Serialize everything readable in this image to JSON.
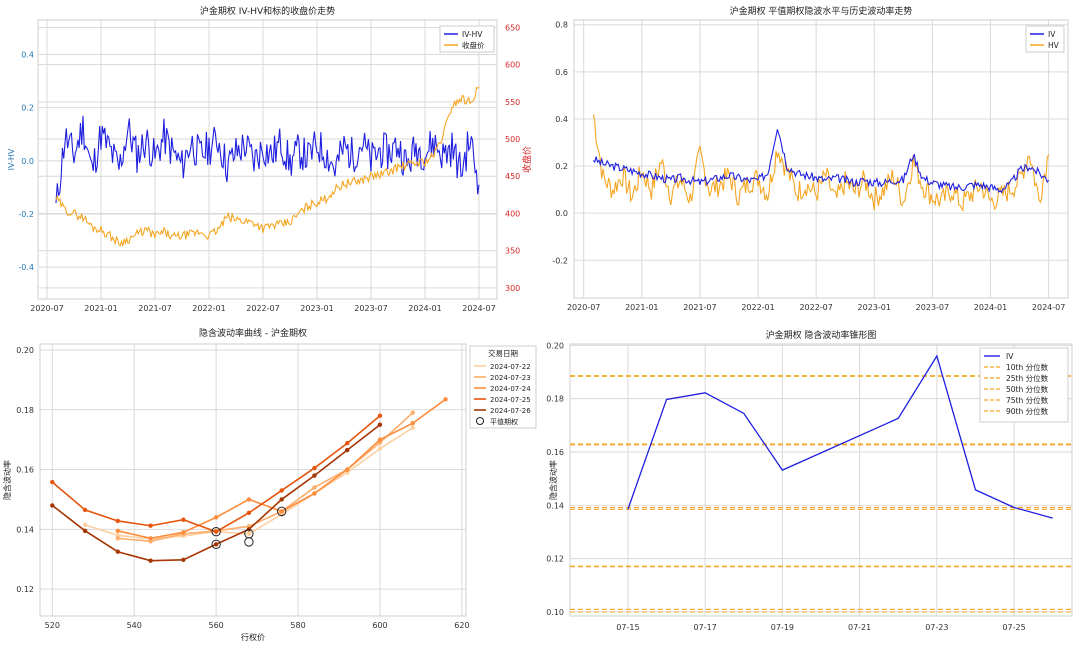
{
  "chart_data": [
    {
      "type": "line",
      "title": "沪金期权 IV-HV和标的收盘价走势",
      "xlabel": "",
      "ylabel": "IV-HV",
      "y2label": "收盘价",
      "x_ticks": [
        "2020-07",
        "2021-01",
        "2021-07",
        "2022-01",
        "2022-07",
        "2023-01",
        "2023-07",
        "2024-01",
        "2024-07"
      ],
      "y_ticks": [
        "-0.4",
        "-0.2",
        "0.0",
        "0.2",
        "0.4"
      ],
      "y2_ticks": [
        "300",
        "350",
        "400",
        "450",
        "500",
        "550",
        "600",
        "650"
      ],
      "xlim": [
        "2020-06",
        "2024-09"
      ],
      "ylim": [
        -0.52,
        0.53
      ],
      "y2lim": [
        285,
        660
      ],
      "grid": true,
      "legend_position": "top-right",
      "series": [
        {
          "name": "IV-HV",
          "axis": "left",
          "color": "#1f1fe0",
          "x": [
            "2020-08",
            "2020-09",
            "2020-10",
            "2020-11",
            "2020-12",
            "2021-01",
            "2021-02",
            "2021-03",
            "2021-04",
            "2021-05",
            "2021-06",
            "2021-07",
            "2021-08",
            "2021-09",
            "2021-10",
            "2021-11",
            "2021-12",
            "2022-01",
            "2022-02",
            "2022-03",
            "2022-04",
            "2022-05",
            "2022-06",
            "2022-07",
            "2022-08",
            "2022-09",
            "2022-10",
            "2022-11",
            "2022-12",
            "2023-01",
            "2023-02",
            "2023-03",
            "2023-04",
            "2023-05",
            "2023-06",
            "2023-07",
            "2023-08",
            "2023-09",
            "2023-10",
            "2023-11",
            "2023-12",
            "2024-01",
            "2024-02",
            "2024-03",
            "2024-04",
            "2024-05",
            "2024-06",
            "2024-07"
          ],
          "values": [
            -0.18,
            0.09,
            0.02,
            0.13,
            -0.04,
            0.1,
            0.04,
            -0.03,
            0.12,
            0.02,
            0.08,
            0.01,
            0.09,
            0.03,
            -0.02,
            0.07,
            0.02,
            0.05,
            0.08,
            -0.02,
            0.03,
            0.06,
            0.0,
            0.05,
            0.02,
            0.07,
            -0.01,
            0.04,
            0.01,
            0.06,
            0.03,
            -0.03,
            0.05,
            0.02,
            0.07,
            0.0,
            0.04,
            0.03,
            0.06,
            -0.02,
            0.05,
            0.03,
            0.07,
            0.02,
            0.05,
            -0.04,
            0.08,
            -0.09
          ]
        },
        {
          "name": "收盘价",
          "axis": "right",
          "color": "#f5a623",
          "x": [
            "2020-08",
            "2020-09",
            "2020-10",
            "2020-11",
            "2020-12",
            "2021-01",
            "2021-02",
            "2021-03",
            "2021-04",
            "2021-05",
            "2021-06",
            "2021-07",
            "2021-08",
            "2021-09",
            "2021-10",
            "2021-11",
            "2021-12",
            "2022-01",
            "2022-02",
            "2022-03",
            "2022-04",
            "2022-05",
            "2022-06",
            "2022-07",
            "2022-08",
            "2022-09",
            "2022-10",
            "2022-11",
            "2022-12",
            "2023-01",
            "2023-02",
            "2023-03",
            "2023-04",
            "2023-05",
            "2023-06",
            "2023-07",
            "2023-08",
            "2023-09",
            "2023-10",
            "2023-11",
            "2023-12",
            "2024-01",
            "2024-02",
            "2024-03",
            "2024-04",
            "2024-05",
            "2024-06",
            "2024-07"
          ],
          "values": [
            420,
            405,
            400,
            395,
            382,
            378,
            370,
            360,
            365,
            372,
            378,
            370,
            375,
            368,
            370,
            372,
            375,
            370,
            378,
            395,
            392,
            390,
            388,
            380,
            384,
            385,
            388,
            400,
            410,
            415,
            420,
            432,
            440,
            442,
            445,
            450,
            452,
            456,
            462,
            465,
            468,
            470,
            478,
            505,
            545,
            555,
            550,
            570
          ]
        }
      ]
    },
    {
      "type": "line",
      "title": "沪金期权 平值期权隐波水平与历史波动率走势",
      "xlabel": "",
      "ylabel": "",
      "x_ticks": [
        "2020-07",
        "2021-01",
        "2021-07",
        "2022-01",
        "2022-07",
        "2023-01",
        "2023-07",
        "2024-01",
        "2024-07"
      ],
      "y_ticks": [
        "-0.2",
        "0.0",
        "0.2",
        "0.4",
        "0.6",
        "0.8"
      ],
      "xlim": [
        "2020-06",
        "2024-09"
      ],
      "ylim": [
        -0.36,
        0.82
      ],
      "grid": true,
      "legend_position": "top-right",
      "series": [
        {
          "name": "IV",
          "color": "#1f1fe0",
          "x": [
            "2020-08",
            "2020-09",
            "2020-10",
            "2020-11",
            "2020-12",
            "2021-01",
            "2021-02",
            "2021-03",
            "2021-04",
            "2021-05",
            "2021-06",
            "2021-07",
            "2021-08",
            "2021-09",
            "2021-10",
            "2021-11",
            "2021-12",
            "2022-01",
            "2022-02",
            "2022-03",
            "2022-04",
            "2022-05",
            "2022-06",
            "2022-07",
            "2022-08",
            "2022-09",
            "2022-10",
            "2022-11",
            "2022-12",
            "2023-01",
            "2023-02",
            "2023-03",
            "2023-04",
            "2023-05",
            "2023-06",
            "2023-07",
            "2023-08",
            "2023-09",
            "2023-10",
            "2023-11",
            "2023-12",
            "2024-01",
            "2024-02",
            "2024-03",
            "2024-04",
            "2024-05",
            "2024-06",
            "2024-07"
          ],
          "values": [
            0.23,
            0.21,
            0.2,
            0.19,
            0.18,
            0.17,
            0.16,
            0.15,
            0.14,
            0.15,
            0.14,
            0.13,
            0.14,
            0.15,
            0.16,
            0.15,
            0.14,
            0.14,
            0.17,
            0.37,
            0.2,
            0.17,
            0.16,
            0.15,
            0.14,
            0.15,
            0.14,
            0.13,
            0.14,
            0.13,
            0.13,
            0.14,
            0.14,
            0.25,
            0.15,
            0.13,
            0.12,
            0.11,
            0.11,
            0.12,
            0.12,
            0.11,
            0.1,
            0.12,
            0.18,
            0.2,
            0.17,
            0.14
          ]
        },
        {
          "name": "HV",
          "color": "#f5a623",
          "x": [
            "2020-08",
            "2020-09",
            "2020-10",
            "2020-11",
            "2020-12",
            "2021-01",
            "2021-02",
            "2021-03",
            "2021-04",
            "2021-05",
            "2021-06",
            "2021-07",
            "2021-08",
            "2021-09",
            "2021-10",
            "2021-11",
            "2021-12",
            "2022-01",
            "2022-02",
            "2022-03",
            "2022-04",
            "2022-05",
            "2022-06",
            "2022-07",
            "2022-08",
            "2022-09",
            "2022-10",
            "2022-11",
            "2022-12",
            "2023-01",
            "2023-02",
            "2023-03",
            "2023-04",
            "2023-05",
            "2023-06",
            "2023-07",
            "2023-08",
            "2023-09",
            "2023-10",
            "2023-11",
            "2023-12",
            "2024-01",
            "2024-02",
            "2024-03",
            "2024-04",
            "2024-05",
            "2024-06",
            "2024-07"
          ],
          "values": [
            0.42,
            0.15,
            0.1,
            0.16,
            0.07,
            0.18,
            0.1,
            0.22,
            0.08,
            0.14,
            0.06,
            0.25,
            0.1,
            0.12,
            0.16,
            0.07,
            0.13,
            0.15,
            0.08,
            0.28,
            0.18,
            0.09,
            0.12,
            0.08,
            0.16,
            0.05,
            0.13,
            0.09,
            0.14,
            0.06,
            0.1,
            0.16,
            0.05,
            0.22,
            0.12,
            0.07,
            0.05,
            0.1,
            0.04,
            0.08,
            0.12,
            0.05,
            0.07,
            0.1,
            0.14,
            0.26,
            0.06,
            0.25
          ]
        }
      ]
    },
    {
      "type": "line",
      "title": "隐含波动率曲线 - 沪金期权",
      "xlabel": "行权价",
      "ylabel": "隐含波动率",
      "x_ticks": [
        "520",
        "540",
        "560",
        "580",
        "600",
        "620"
      ],
      "y_ticks": [
        "0.12",
        "0.14",
        "0.16",
        "0.18",
        "0.20"
      ],
      "xlim": [
        517,
        621
      ],
      "ylim": [
        0.111,
        0.202
      ],
      "grid": true,
      "legend_title": "交易日期",
      "legend_position": "top-right",
      "atm_label": "平值期权",
      "atm_points": [
        [
          560,
          0.1392
        ],
        [
          568,
          0.1385
        ],
        [
          568,
          0.1358
        ],
        [
          576,
          0.146
        ],
        [
          560,
          0.135
        ]
      ],
      "series": [
        {
          "name": "2024-07-22",
          "color": "#fdd0a2",
          "x": [
            528,
            536,
            544,
            552,
            560,
            568,
            576,
            584,
            592,
            600,
            608
          ],
          "y": [
            0.1415,
            0.138,
            0.1368,
            0.1378,
            0.1392,
            0.1385,
            0.145,
            0.152,
            0.159,
            0.167,
            0.174
          ]
        },
        {
          "name": "2024-07-23",
          "color": "#fdae6b",
          "x": [
            536,
            544,
            552,
            560,
            568,
            576,
            584,
            592,
            600,
            608
          ],
          "y": [
            0.137,
            0.136,
            0.1385,
            0.1395,
            0.141,
            0.146,
            0.154,
            0.16,
            0.169,
            0.179
          ]
        },
        {
          "name": "2024-07-24",
          "color": "#fd8d3c",
          "x": [
            536,
            544,
            552,
            560,
            568,
            576,
            584,
            592,
            600,
            608,
            616
          ],
          "y": [
            0.1395,
            0.137,
            0.139,
            0.144,
            0.15,
            0.146,
            0.152,
            0.16,
            0.17,
            0.1755,
            0.1835
          ]
        },
        {
          "name": "2024-07-25",
          "color": "#e6550d",
          "x": [
            520,
            528,
            536,
            544,
            552,
            560,
            568,
            576,
            584,
            592,
            600
          ],
          "y": [
            0.1558,
            0.1465,
            0.1428,
            0.1412,
            0.1432,
            0.1392,
            0.1455,
            0.153,
            0.1605,
            0.1688,
            0.178
          ]
        },
        {
          "name": "2024-07-26",
          "color": "#a63603",
          "x": [
            520,
            528,
            536,
            544,
            552,
            560,
            568,
            576,
            584,
            592,
            600
          ],
          "y": [
            0.148,
            0.1395,
            0.1325,
            0.1295,
            0.1298,
            0.135,
            0.14,
            0.15,
            0.158,
            0.1665,
            0.175
          ]
        }
      ]
    },
    {
      "type": "line",
      "title": "沪金期权 隐含波动率锥形图",
      "xlabel": "",
      "ylabel": "隐含波动率",
      "x_ticks": [
        "07-15",
        "07-17",
        "07-19",
        "07-21",
        "07-23",
        "07-25"
      ],
      "y_ticks": [
        "0.10",
        "0.12",
        "0.14",
        "0.16",
        "0.18",
        "0.20"
      ],
      "xlim": [
        "2024-07-14.5",
        "2024-07-26.5"
      ],
      "ylim": [
        0.0985,
        0.2005
      ],
      "grid": true,
      "legend_position": "top-right",
      "series": [
        {
          "name": "IV",
          "color": "#1f1fe0",
          "x": [
            "2024-07-15",
            "2024-07-16",
            "2024-07-17",
            "2024-07-18",
            "2024-07-19",
            "2024-07-22",
            "2024-07-23",
            "2024-07-24",
            "2024-07-25",
            "2024-07-26"
          ],
          "y": [
            0.1385,
            0.1797,
            0.1822,
            0.1745,
            0.1532,
            0.1726,
            0.196,
            0.1458,
            0.1392,
            0.1352
          ]
        }
      ],
      "percentile_color": "#f5a623",
      "percentiles": [
        {
          "name": "10th 分位数",
          "values": [
            0.101,
            0.1
          ]
        },
        {
          "name": "25th 分位数",
          "values": [
            0.117,
            0.1172
          ]
        },
        {
          "name": "50th 分位数",
          "values": [
            0.1385,
            0.1392
          ]
        },
        {
          "name": "75th 分位数",
          "values": [
            0.1627,
            0.163
          ]
        },
        {
          "name": "90th 分位数",
          "values": [
            0.1884,
            0.1886
          ]
        }
      ]
    }
  ]
}
